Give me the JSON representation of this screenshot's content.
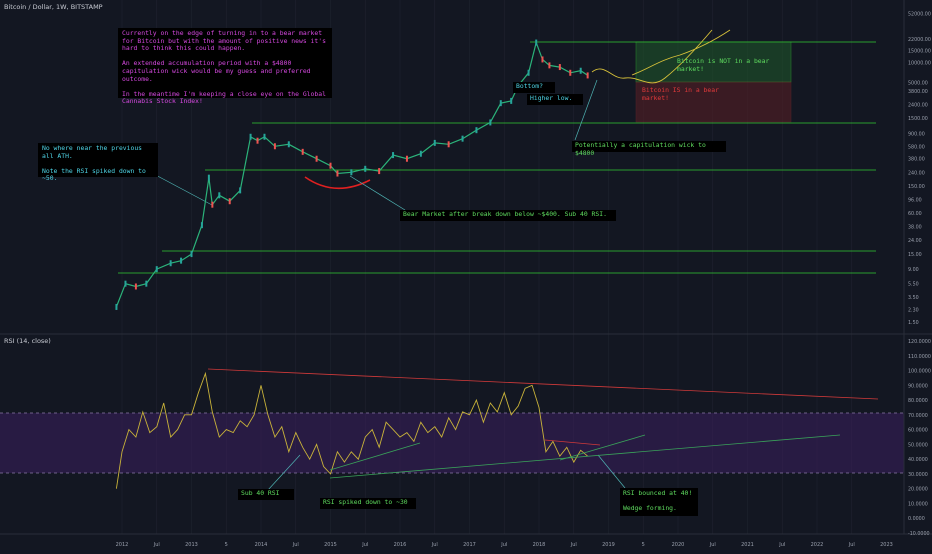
{
  "header": {
    "title": "Bitcoin / Dollar, 1W, BITSTAMP",
    "rsi_label": "RSI (14, close)"
  },
  "colors": {
    "background": "#131722",
    "grid": "#1f2330",
    "price_line": "#2bb37a",
    "rsi_line": "#c9b33a",
    "support_line": "#33cc33",
    "trend_red": "#d03a3a",
    "rsi_band": "#3b1f5e",
    "annotation_magenta": "#d649e0",
    "annotation_cyan": "#4fd6e8",
    "annotation_green": "#5fdc5f",
    "annotation_red": "#e23a3a",
    "axis_text": "#9aa0ad"
  },
  "chart_data": [
    {
      "type": "line",
      "scale": "log",
      "x_ticks": [
        "2012",
        "Jul",
        "2013",
        "5",
        "2014",
        "Jul",
        "2015",
        "Jul",
        "2016",
        "Jul",
        "2017",
        "Jul",
        "2018",
        "Jul",
        "2019",
        "5",
        "2020",
        "Jul",
        "2021",
        "Jul",
        "2022",
        "Jul",
        "2023"
      ],
      "y_ticks": [
        "52000.00",
        "22000.00",
        "15000.00",
        "10000.00",
        "5000.00",
        "3800.00",
        "2400.00",
        "1500.00",
        "900.00",
        "580.00",
        "380.00",
        "240.00",
        "150.00",
        "96.00",
        "60.00",
        "38.00",
        "24.00",
        "15.00",
        "9.00",
        "5.50",
        "3.50",
        "2.30",
        "1.50"
      ],
      "series": [
        {
          "x": [
            2011.92,
            2012.05,
            2012.2,
            2012.35,
            2012.5,
            2012.7,
            2012.85,
            2013.0,
            2013.15,
            2013.25,
            2013.3,
            2013.4,
            2013.55,
            2013.7,
            2013.85,
            2013.95,
            2014.05,
            2014.2,
            2014.4,
            2014.6,
            2014.8,
            2015.0,
            2015.1,
            2015.3,
            2015.5,
            2015.7,
            2015.9,
            2016.1,
            2016.3,
            2016.5,
            2016.7,
            2016.9,
            2017.1,
            2017.3,
            2017.45,
            2017.6,
            2017.7,
            2017.85,
            2017.96,
            2018.05,
            2018.15,
            2018.3,
            2018.45,
            2018.6,
            2018.7
          ],
          "y": [
            2.5,
            5.5,
            5.0,
            5.5,
            9,
            11,
            12,
            15,
            40,
            200,
            80,
            110,
            90,
            130,
            800,
            700,
            800,
            580,
            620,
            480,
            380,
            300,
            230,
            240,
            270,
            250,
            430,
            380,
            450,
            650,
            620,
            750,
            1000,
            1300,
            2500,
            2700,
            4500,
            7000,
            19500,
            11000,
            9000,
            8500,
            7000,
            7500,
            6400
          ]
        }
      ],
      "annotations": [
        "Currently on the edge of turning in to a bear market for Bitcoin but with the amount of positive news it's hard to think this could happen.\n\nAn extended accumulation period with a $4800 capitulation wick would be my guess and preferred outcome.\n\nIn the meantime I'm keeping a close eye on the Global Cannabis Stock Index!",
        "No where near the previous all ATH.\n\nNote the RSI spiked down to ~50.",
        "Bear Market after break down below ~$400. Sub 40 RSI.",
        "Bottom?",
        "Higher low.",
        "Potentially a capitulation wick to $4800",
        "Bitcoin is NOT in a bear market!",
        "Bitcoin IS in a bear market!"
      ]
    },
    {
      "type": "line",
      "title": "RSI (14, close)",
      "y_ticks": [
        "120.0000",
        "110.0000",
        "100.0000",
        "90.0000",
        "80.0000",
        "70.0000",
        "60.0000",
        "50.0000",
        "40.0000",
        "30.0000",
        "20.0000",
        "10.0000",
        "0.0000",
        "-10.0000"
      ],
      "ylim": [
        -10,
        120
      ],
      "series": [
        {
          "x": [
            2011.92,
            2012.0,
            2012.1,
            2012.2,
            2012.3,
            2012.4,
            2012.5,
            2012.6,
            2012.7,
            2012.8,
            2012.9,
            2013.0,
            2013.1,
            2013.2,
            2013.3,
            2013.4,
            2013.5,
            2013.6,
            2013.7,
            2013.8,
            2013.9,
            2014.0,
            2014.1,
            2014.2,
            2014.3,
            2014.4,
            2014.5,
            2014.6,
            2014.7,
            2014.8,
            2014.9,
            2015.0,
            2015.1,
            2015.2,
            2015.3,
            2015.4,
            2015.5,
            2015.6,
            2015.7,
            2015.8,
            2015.9,
            2016.0,
            2016.1,
            2016.2,
            2016.3,
            2016.4,
            2016.5,
            2016.6,
            2016.7,
            2016.8,
            2016.9,
            2017.0,
            2017.1,
            2017.2,
            2017.3,
            2017.4,
            2017.5,
            2017.6,
            2017.7,
            2017.8,
            2017.9,
            2018.0,
            2018.1,
            2018.2,
            2018.3,
            2018.4,
            2018.5,
            2018.6,
            2018.7
          ],
          "y": [
            20,
            45,
            60,
            55,
            72,
            58,
            62,
            78,
            55,
            60,
            70,
            70,
            85,
            98,
            72,
            55,
            60,
            58,
            66,
            62,
            70,
            90,
            70,
            55,
            62,
            45,
            58,
            48,
            40,
            50,
            35,
            30,
            45,
            38,
            45,
            40,
            55,
            60,
            48,
            65,
            60,
            55,
            58,
            52,
            65,
            58,
            62,
            55,
            68,
            60,
            72,
            70,
            80,
            65,
            78,
            72,
            85,
            70,
            76,
            88,
            90,
            75,
            45,
            52,
            42,
            48,
            38,
            46,
            42
          ]
        }
      ],
      "annotations": [
        "Sub 40 RSI",
        "RSI spiked down to ~30",
        "RSI bounced at 40!\n\nWedge forming."
      ]
    }
  ]
}
